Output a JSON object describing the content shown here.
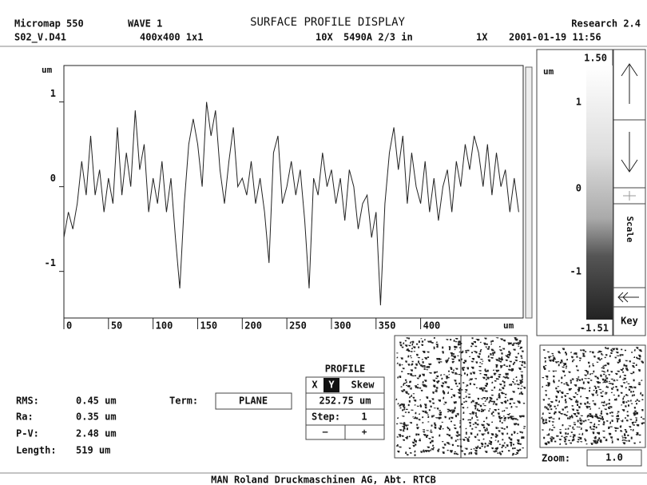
{
  "header": {
    "left": [
      "Micromap 550",
      "WAVE 1"
    ],
    "title": "SURFACE PROFILE DISPLAY",
    "right": "Research 2.4",
    "file": "S02_V.D41",
    "size": "400x400 1x1",
    "objective": "10X",
    "wavelength": "5490A 2/3 in",
    "fov": "1X",
    "datetime": "2001-01-19 11:56"
  },
  "chart_data": {
    "type": "line",
    "y_label": "um",
    "x_label": "um",
    "color": "#222",
    "x": [
      0,
      5,
      10,
      15,
      20,
      25,
      30,
      35,
      40,
      45,
      50,
      55,
      60,
      65,
      70,
      75,
      80,
      85,
      90,
      95,
      100,
      105,
      110,
      115,
      120,
      125,
      130,
      135,
      140,
      145,
      150,
      155,
      160,
      165,
      170,
      175,
      180,
      185,
      190,
      195,
      200,
      205,
      210,
      215,
      220,
      225,
      230,
      235,
      240,
      245,
      250,
      255,
      260,
      265,
      270,
      275,
      280,
      285,
      290,
      295,
      300,
      305,
      310,
      315,
      320,
      325,
      330,
      335,
      340,
      345,
      350,
      355,
      360,
      365,
      370,
      375,
      380,
      385,
      390,
      395,
      400,
      405,
      410,
      415,
      420,
      425,
      430,
      435,
      440,
      445,
      450,
      455,
      460,
      465,
      470,
      475,
      480,
      485,
      490,
      495,
      500,
      505,
      510
    ],
    "values": [
      -0.6,
      -0.3,
      -0.5,
      -0.2,
      0.3,
      -0.1,
      0.6,
      -0.1,
      0.2,
      -0.3,
      0.1,
      -0.2,
      0.7,
      -0.1,
      0.4,
      0.0,
      0.9,
      0.2,
      0.5,
      -0.3,
      0.1,
      -0.2,
      0.3,
      -0.3,
      0.1,
      -0.6,
      -1.2,
      -0.2,
      0.5,
      0.8,
      0.5,
      0.0,
      1.0,
      0.6,
      0.9,
      0.2,
      -0.2,
      0.3,
      0.7,
      0.0,
      0.1,
      -0.1,
      0.3,
      -0.2,
      0.1,
      -0.3,
      -0.9,
      0.4,
      0.6,
      -0.2,
      0.0,
      0.3,
      -0.1,
      0.2,
      -0.4,
      -1.2,
      0.1,
      -0.1,
      0.4,
      0.0,
      0.2,
      -0.2,
      0.1,
      -0.4,
      0.2,
      0.0,
      -0.5,
      -0.2,
      -0.1,
      -0.6,
      -0.3,
      -1.4,
      -0.2,
      0.4,
      0.7,
      0.2,
      0.6,
      -0.2,
      0.4,
      0.0,
      -0.2,
      0.3,
      -0.3,
      0.1,
      -0.4,
      0.0,
      0.2,
      -0.3,
      0.3,
      0.0,
      0.5,
      0.2,
      0.6,
      0.4,
      0.0,
      0.5,
      -0.1,
      0.4,
      0.0,
      0.2,
      -0.3,
      0.1,
      -0.3
    ],
    "xlim": [
      0,
      515
    ],
    "xticks": [
      0,
      50,
      100,
      150,
      200,
      250,
      300,
      350,
      400
    ],
    "ylim": [
      -1.55,
      1.43
    ],
    "yticks": [
      -1,
      0,
      1
    ]
  },
  "stats": [
    [
      "RMS:",
      "0.45 um"
    ],
    [
      "Ra:",
      "0.35 um"
    ],
    [
      "P-V:",
      "2.48 um"
    ],
    [
      "Length:",
      "519 um"
    ]
  ],
  "term": {
    "label": "Term:",
    "value": "PLANE"
  },
  "profile": {
    "title": "PROFILE",
    "x": "X",
    "y": "Y",
    "skew": "Skew",
    "position": "252.75 um",
    "step_label": "Step:",
    "step": "1",
    "minus": "—",
    "plus": "+"
  },
  "scale": {
    "max": "1.50",
    "unit": "um",
    "ticks": [
      "1",
      "0",
      "-1"
    ],
    "min": "-1.51",
    "scale": "Scale",
    "key": "Key"
  },
  "zoom": {
    "label": "Zoom:",
    "value": "1.0"
  },
  "footer": "MAN Roland Druckmaschinen AG, Abt. RTCB"
}
